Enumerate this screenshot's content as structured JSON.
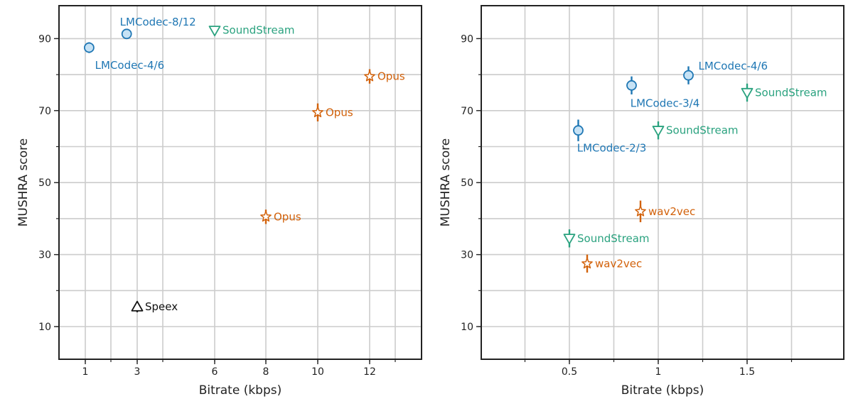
{
  "colors": {
    "blue": "#1f77b4",
    "blue_fill": "#c6e2f5",
    "orange": "#d2610a",
    "green": "#2aa27f",
    "black": "#111111",
    "grid": "#cccccc",
    "frame": "#222222"
  },
  "chart_data": [
    {
      "type": "scatter",
      "xlabel": "Bitrate (kbps)",
      "ylabel": "MUSHRA score",
      "xticks": [
        {
          "value": 1,
          "label": "1"
        },
        {
          "value": 3,
          "label": "3"
        },
        {
          "value": 6,
          "label": "6"
        },
        {
          "value": 8,
          "label": "8"
        },
        {
          "value": 10,
          "label": "10"
        },
        {
          "value": 12,
          "label": "12"
        }
      ],
      "xgrid": [
        1,
        2,
        3,
        4,
        6,
        8,
        10,
        12,
        14
      ],
      "yticks": [
        {
          "value": 10,
          "label": "10"
        },
        {
          "value": 30,
          "label": "30"
        },
        {
          "value": 50,
          "label": "50"
        },
        {
          "value": 70,
          "label": "70"
        },
        {
          "value": 90,
          "label": "90"
        }
      ],
      "ygrid": [
        10,
        20,
        30,
        40,
        50,
        60,
        70,
        80,
        90
      ],
      "grid": true,
      "points": [
        {
          "codec": "LMCodec",
          "label": "LMCodec-4/6",
          "x": 1.15,
          "y": 87.5,
          "err": 1.5,
          "marker": "circle",
          "color": "blue",
          "label_pos": "below"
        },
        {
          "codec": "LMCodec",
          "label": "LMCodec-8/12",
          "x": 2.6,
          "y": 91.3,
          "err": 1.2,
          "marker": "circle",
          "color": "blue",
          "label_pos": "above"
        },
        {
          "codec": "SoundStream",
          "label": "SoundStream",
          "x": 6,
          "y": 92.3,
          "err": 1.0,
          "marker": "triangle-down",
          "color": "green",
          "label_pos": "right"
        },
        {
          "codec": "Opus",
          "label": "Opus",
          "x": 12,
          "y": 79.5,
          "err": 2.0,
          "marker": "star",
          "color": "orange",
          "label_pos": "right"
        },
        {
          "codec": "Opus",
          "label": "Opus",
          "x": 10,
          "y": 69.5,
          "err": 2.5,
          "marker": "star",
          "color": "orange",
          "label_pos": "right"
        },
        {
          "codec": "Opus",
          "label": "Opus",
          "x": 8,
          "y": 40.5,
          "err": 2.0,
          "marker": "star",
          "color": "orange",
          "label_pos": "right"
        },
        {
          "codec": "Speex",
          "label": "Speex",
          "x": 3,
          "y": 15.5,
          "err": 1.5,
          "marker": "triangle-up",
          "color": "black",
          "label_pos": "right"
        }
      ]
    },
    {
      "type": "scatter",
      "xlabel": "Bitrate (kbps)",
      "ylabel": "MUSHRA score",
      "xticks": [
        {
          "value": 0.5,
          "label": "0.5"
        },
        {
          "value": 1,
          "label": "1"
        },
        {
          "value": 1.5,
          "label": "1.5"
        }
      ],
      "xgrid": [
        0.25,
        0.5,
        0.75,
        1.0,
        1.25,
        1.5,
        1.75
      ],
      "yticks": [
        {
          "value": 10,
          "label": "10"
        },
        {
          "value": 30,
          "label": "30"
        },
        {
          "value": 50,
          "label": "50"
        },
        {
          "value": 70,
          "label": "70"
        },
        {
          "value": 90,
          "label": "90"
        }
      ],
      "ygrid": [
        10,
        20,
        30,
        40,
        50,
        60,
        70,
        80,
        90
      ],
      "grid": true,
      "points": [
        {
          "codec": "LMCodec",
          "label": "LMCodec-4/6",
          "x": 1.17,
          "y": 79.8,
          "err": 2.5,
          "marker": "circle",
          "color": "blue",
          "label_pos": "right-up"
        },
        {
          "codec": "LMCodec",
          "label": "LMCodec-3/4",
          "x": 0.85,
          "y": 77.0,
          "err": 2.5,
          "marker": "circle",
          "color": "blue",
          "label_pos": "below"
        },
        {
          "codec": "LMCodec",
          "label": "LMCodec-2/3",
          "x": 0.55,
          "y": 64.5,
          "err": 3.0,
          "marker": "circle",
          "color": "blue",
          "label_pos": "below"
        },
        {
          "codec": "SoundStream",
          "label": "SoundStream",
          "x": 1.5,
          "y": 75.0,
          "err": 2.5,
          "marker": "triangle-down",
          "color": "green",
          "label_pos": "right"
        },
        {
          "codec": "SoundStream",
          "label": "SoundStream",
          "x": 1.0,
          "y": 64.5,
          "err": 2.5,
          "marker": "triangle-down",
          "color": "green",
          "label_pos": "right"
        },
        {
          "codec": "SoundStream",
          "label": "SoundStream",
          "x": 0.5,
          "y": 34.5,
          "err": 2.5,
          "marker": "triangle-down",
          "color": "green",
          "label_pos": "right"
        },
        {
          "codec": "wav2vec",
          "label": "wav2vec",
          "x": 0.9,
          "y": 42.0,
          "err": 3.0,
          "marker": "star",
          "color": "orange",
          "label_pos": "right"
        },
        {
          "codec": "wav2vec",
          "label": "wav2vec",
          "x": 0.6,
          "y": 27.5,
          "err": 2.5,
          "marker": "star",
          "color": "orange",
          "label_pos": "right"
        }
      ]
    }
  ]
}
